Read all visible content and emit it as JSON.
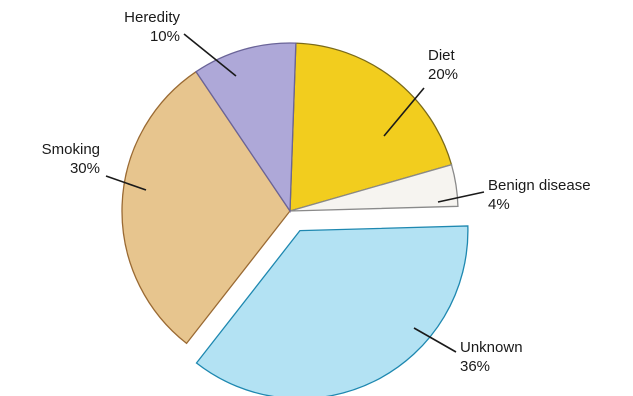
{
  "chart_data": {
    "type": "pie",
    "title": "",
    "slices": [
      {
        "name": "Diet",
        "percent_label": "20%",
        "value": 20,
        "color": "#f2cd1e",
        "stroke": "#7a6a1a",
        "exploded": false
      },
      {
        "name": "Benign disease",
        "percent_label": "4%",
        "value": 4,
        "color": "#f6f4f0",
        "stroke": "#8a8a8a",
        "exploded": false
      },
      {
        "name": "Unknown",
        "percent_label": "36%",
        "value": 36,
        "color": "#b3e2f3",
        "stroke": "#1e88b0",
        "exploded": true
      },
      {
        "name": "Smoking",
        "percent_label": "30%",
        "value": 30,
        "color": "#e7c58e",
        "stroke": "#9a6a33",
        "exploded": false
      },
      {
        "name": "Heredity",
        "percent_label": "10%",
        "value": 10,
        "color": "#aea8d8",
        "stroke": "#6a6498",
        "exploded": false
      }
    ],
    "legend": "none",
    "labels": "outside-with-leader-lines"
  }
}
